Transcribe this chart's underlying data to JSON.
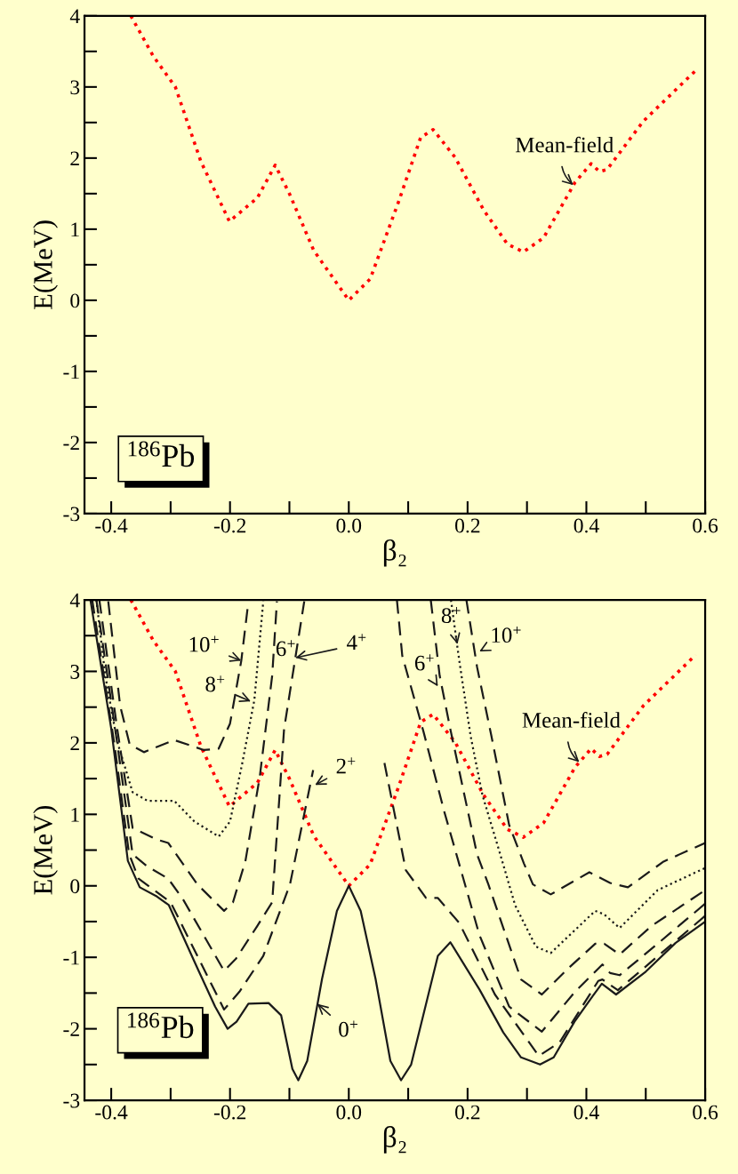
{
  "chart_data": [
    {
      "type": "line",
      "xlabel": "β₂",
      "ylabel": "E(MeV)",
      "xlim": [
        -0.445,
        0.6
      ],
      "ylim": [
        -3,
        4
      ],
      "xticks": [
        -0.4,
        {
          "value": -0.3,
          "label": null
        },
        -0.2,
        {
          "value": -0.1,
          "label": null
        },
        {
          "value": 0,
          "label": "0.0"
        },
        {
          "value": 0.1,
          "label": null
        },
        0.2,
        {
          "value": 0.3,
          "label": null
        },
        0.4,
        {
          "value": 0.5,
          "label": null
        },
        0.6
      ],
      "yticks": [
        -3,
        {
          "value": -2.5,
          "label": null
        },
        -2,
        {
          "value": -1.5,
          "label": null
        },
        -1,
        {
          "value": -0.5,
          "label": null
        },
        0,
        {
          "value": 0.5,
          "label": null
        },
        1,
        {
          "value": 1.5,
          "label": null
        },
        2,
        {
          "value": 2.5,
          "label": null
        },
        3,
        {
          "value": 3.5,
          "label": null
        },
        4
      ],
      "grid": false,
      "marker": "none",
      "series": [
        {
          "color": "#ff0000",
          "line_style": "dotted",
          "x": [
            -0.367,
            -0.329,
            -0.292,
            -0.249,
            -0.201,
            -0.154,
            -0.124,
            -0.1,
            -0.059,
            0.0,
            0.036,
            0.084,
            0.121,
            0.142,
            0.179,
            0.227,
            0.267,
            0.294,
            0.328,
            0.381,
            0.408,
            0.422,
            0.435,
            0.496,
            0.584
          ],
          "values": [
            4.0,
            3.43,
            3.0,
            1.95,
            1.11,
            1.44,
            1.9,
            1.5,
            0.7,
            0.0,
            0.3,
            1.39,
            2.29,
            2.4,
            2.01,
            1.27,
            0.79,
            0.68,
            0.88,
            1.66,
            1.92,
            1.81,
            1.84,
            2.52,
            3.23
          ]
        }
      ],
      "annotations": [
        {
          "text": "Mean-field",
          "x": 0.378,
          "y": 1.62
        },
        "$^{186}$Pb"
      ]
    },
    {
      "type": "line",
      "xlabel": "β₂",
      "ylabel": "E(MeV)",
      "xlim": [
        -0.445,
        0.6
      ],
      "ylim": [
        -3,
        4
      ],
      "xticks": [
        -0.4,
        {
          "value": -0.3,
          "label": null
        },
        -0.2,
        {
          "value": -0.1,
          "label": null
        },
        {
          "value": 0,
          "label": "0.0"
        },
        {
          "value": 0.1,
          "label": null
        },
        0.2,
        {
          "value": 0.3,
          "label": null
        },
        0.4,
        {
          "value": 0.5,
          "label": null
        },
        0.6
      ],
      "yticks": [
        -3,
        {
          "value": -2.5,
          "label": null
        },
        -2,
        {
          "value": -1.5,
          "label": null
        },
        -1,
        {
          "value": -0.5,
          "label": null
        },
        0,
        {
          "value": 0.5,
          "label": null
        },
        1,
        {
          "value": 1.5,
          "label": null
        },
        2,
        {
          "value": 2.5,
          "label": null
        },
        3,
        {
          "value": 3.5,
          "label": null
        },
        4
      ],
      "grid": false,
      "marker": "none",
      "series": [
        {
          "color": "#ff0000",
          "line_style": "dotted",
          "x": [
            -0.367,
            -0.329,
            -0.292,
            -0.249,
            -0.201,
            -0.154,
            -0.124,
            -0.1,
            -0.059,
            0.0,
            0.036,
            0.084,
            0.121,
            0.142,
            0.179,
            0.227,
            0.267,
            0.294,
            0.328,
            0.381,
            0.408,
            0.422,
            0.435,
            0.496,
            0.584
          ],
          "values": [
            4.0,
            3.43,
            3.0,
            1.95,
            1.11,
            1.44,
            1.9,
            1.5,
            0.7,
            0.0,
            0.3,
            1.39,
            2.29,
            2.4,
            2.01,
            1.27,
            0.79,
            0.68,
            0.88,
            1.66,
            1.92,
            1.81,
            1.84,
            2.52,
            3.23
          ]
        },
        {
          "color": "#1a1a1a",
          "line_style": "solid",
          "x": [
            -0.435,
            -0.4,
            -0.372,
            -0.352,
            -0.323,
            -0.303,
            -0.255,
            -0.225,
            -0.204,
            -0.189,
            -0.169,
            -0.135,
            -0.114,
            -0.095,
            -0.085,
            -0.07,
            -0.045,
            -0.02,
            0.0,
            0.02,
            0.045,
            0.07,
            0.088,
            0.105,
            0.15,
            0.171,
            0.22,
            0.26,
            0.29,
            0.322,
            0.345,
            0.38,
            0.41,
            0.426,
            0.45,
            0.5,
            0.55,
            0.6
          ],
          "values": [
            4.0,
            2.2,
            0.35,
            -0.02,
            -0.15,
            -0.27,
            -1.15,
            -1.69,
            -2.0,
            -1.9,
            -1.65,
            -1.64,
            -1.81,
            -2.56,
            -2.72,
            -2.45,
            -1.3,
            -0.35,
            0.0,
            -0.35,
            -1.3,
            -2.45,
            -2.72,
            -2.5,
            -0.98,
            -0.79,
            -1.45,
            -2.05,
            -2.4,
            -2.5,
            -2.4,
            -1.9,
            -1.55,
            -1.37,
            -1.52,
            -1.2,
            -0.8,
            -0.5
          ]
        },
        {
          "color": "#1a1a1a",
          "line_style": "dashed",
          "x": [
            -0.432,
            -0.395,
            -0.37,
            -0.354,
            -0.3,
            -0.21,
            -0.184,
            -0.144,
            -0.099,
            -0.06
          ],
          "values": [
            4.0,
            2.0,
            0.45,
            0.1,
            -0.23,
            -1.73,
            -1.48,
            -0.98,
            0.02,
            1.62
          ]
        },
        {
          "color": "#1a1a1a",
          "line_style": "dashed",
          "x": [
            0.06,
            0.096,
            0.13,
            0.15,
            0.186,
            0.246,
            0.32,
            0.355,
            0.42,
            0.427,
            0.453,
            0.6
          ],
          "values": [
            1.72,
            0.22,
            -0.17,
            -0.17,
            -0.52,
            -1.52,
            -2.38,
            -2.19,
            -1.33,
            -1.31,
            -1.46,
            -0.42
          ]
        },
        {
          "color": "#1a1a1a",
          "line_style": "dashed",
          "x": [
            -0.425,
            -0.39,
            -0.364,
            -0.339,
            -0.304,
            -0.279,
            -0.21,
            -0.19,
            -0.154,
            -0.129,
            -0.109,
            -0.075
          ],
          "values": [
            4.0,
            2.0,
            0.44,
            0.27,
            0.1,
            -0.19,
            -1.19,
            -1.02,
            -0.56,
            -0.23,
            2.19,
            3.98
          ]
        },
        {
          "color": "#1a1a1a",
          "line_style": "dashed",
          "x": [
            0.081,
            0.09,
            0.126,
            0.16,
            0.22,
            0.27,
            0.325,
            0.381,
            0.427,
            0.44,
            0.456,
            0.52,
            0.6
          ],
          "values": [
            4.0,
            3.22,
            2.15,
            1.06,
            -0.69,
            -1.69,
            -2.04,
            -1.48,
            -1.1,
            -1.22,
            -1.25,
            -0.81,
            -0.25
          ]
        },
        {
          "color": "#1a1a1a",
          "line_style": "dashed",
          "x": [
            -0.42,
            -0.39,
            -0.364,
            -0.324,
            -0.304,
            -0.255,
            -0.21,
            -0.195,
            -0.174,
            -0.15,
            -0.129,
            -0.121
          ],
          "values": [
            4.0,
            2.2,
            0.81,
            0.65,
            0.6,
            0.02,
            -0.35,
            -0.23,
            0.35,
            1.52,
            2.94,
            3.98
          ]
        },
        {
          "color": "#1a1a1a",
          "line_style": "dashed",
          "x": [
            0.138,
            0.153,
            0.171,
            0.216,
            0.235,
            0.29,
            0.325,
            0.37,
            0.415,
            0.43,
            0.456,
            0.51,
            0.6
          ],
          "values": [
            4.0,
            2.94,
            2.19,
            0.44,
            0.02,
            -1.31,
            -1.52,
            -1.15,
            -0.81,
            -0.81,
            -0.96,
            -0.56,
            -0.06
          ]
        },
        {
          "color": "#1a1a1a",
          "line_style": "dotted",
          "x": [
            -0.425,
            -0.41,
            -0.39,
            -0.364,
            -0.339,
            -0.294,
            -0.26,
            -0.219,
            -0.2,
            -0.18,
            -0.159,
            -0.144
          ],
          "values": [
            4.0,
            2.94,
            2.02,
            1.31,
            1.19,
            1.19,
            0.9,
            0.69,
            0.9,
            1.69,
            2.6,
            3.98
          ]
        },
        {
          "color": "#1a1a1a",
          "line_style": "dotted",
          "x": [
            0.172,
            0.186,
            0.205,
            0.225,
            0.255,
            0.28,
            0.315,
            0.34,
            0.415,
            0.43,
            0.456,
            0.52,
            0.6
          ],
          "values": [
            4.0,
            3.15,
            2.1,
            1.27,
            0.44,
            -0.27,
            -0.85,
            -0.94,
            -0.35,
            -0.4,
            -0.59,
            -0.06,
            0.25
          ]
        },
        {
          "color": "#1a1a1a",
          "line_style": "dashed",
          "x": [
            -0.405,
            -0.385,
            -0.369,
            -0.345,
            -0.294,
            -0.244,
            -0.219,
            -0.2,
            -0.181,
            -0.169
          ],
          "values": [
            3.98,
            2.52,
            1.98,
            1.87,
            2.04,
            1.9,
            1.92,
            2.27,
            3.15,
            3.98
          ]
        },
        {
          "color": "#1a1a1a",
          "line_style": "dashed",
          "x": [
            0.198,
            0.216,
            0.24,
            0.27,
            0.295,
            0.31,
            0.34,
            0.405,
            0.44,
            0.47,
            0.53,
            0.6
          ],
          "values": [
            4.0,
            3.06,
            2.1,
            0.85,
            0.31,
            0.02,
            -0.12,
            0.19,
            0.04,
            -0.02,
            0.34,
            0.6
          ]
        }
      ],
      "annotations": [
        {
          "text": "10$^{+}$",
          "x": -0.181,
          "y": 3.15
        },
        {
          "text": "8$^{+}$",
          "x": -0.165,
          "y": 2.58
        },
        {
          "text": "6$^{+}$",
          "x": -0.127,
          "y": 3.29
        },
        {
          "text": "4$^{+}$",
          "x": -0.09,
          "y": 3.19
        },
        {
          "text": "6$^{+}$",
          "x": 0.15,
          "y": 2.79
        },
        {
          "text": "8$^{+}$",
          "x": 0.183,
          "y": 3.38
        },
        {
          "text": "10$^{+}$",
          "x": 0.22,
          "y": 3.28
        },
        {
          "text": "2$^{+}$",
          "x": -0.057,
          "y": 1.41
        },
        {
          "text": "0$^{+}$",
          "x": -0.053,
          "y": -1.65
        },
        {
          "text": "Mean-field",
          "x": 0.388,
          "y": 1.73
        },
        "$^{186}$Pb"
      ]
    }
  ]
}
